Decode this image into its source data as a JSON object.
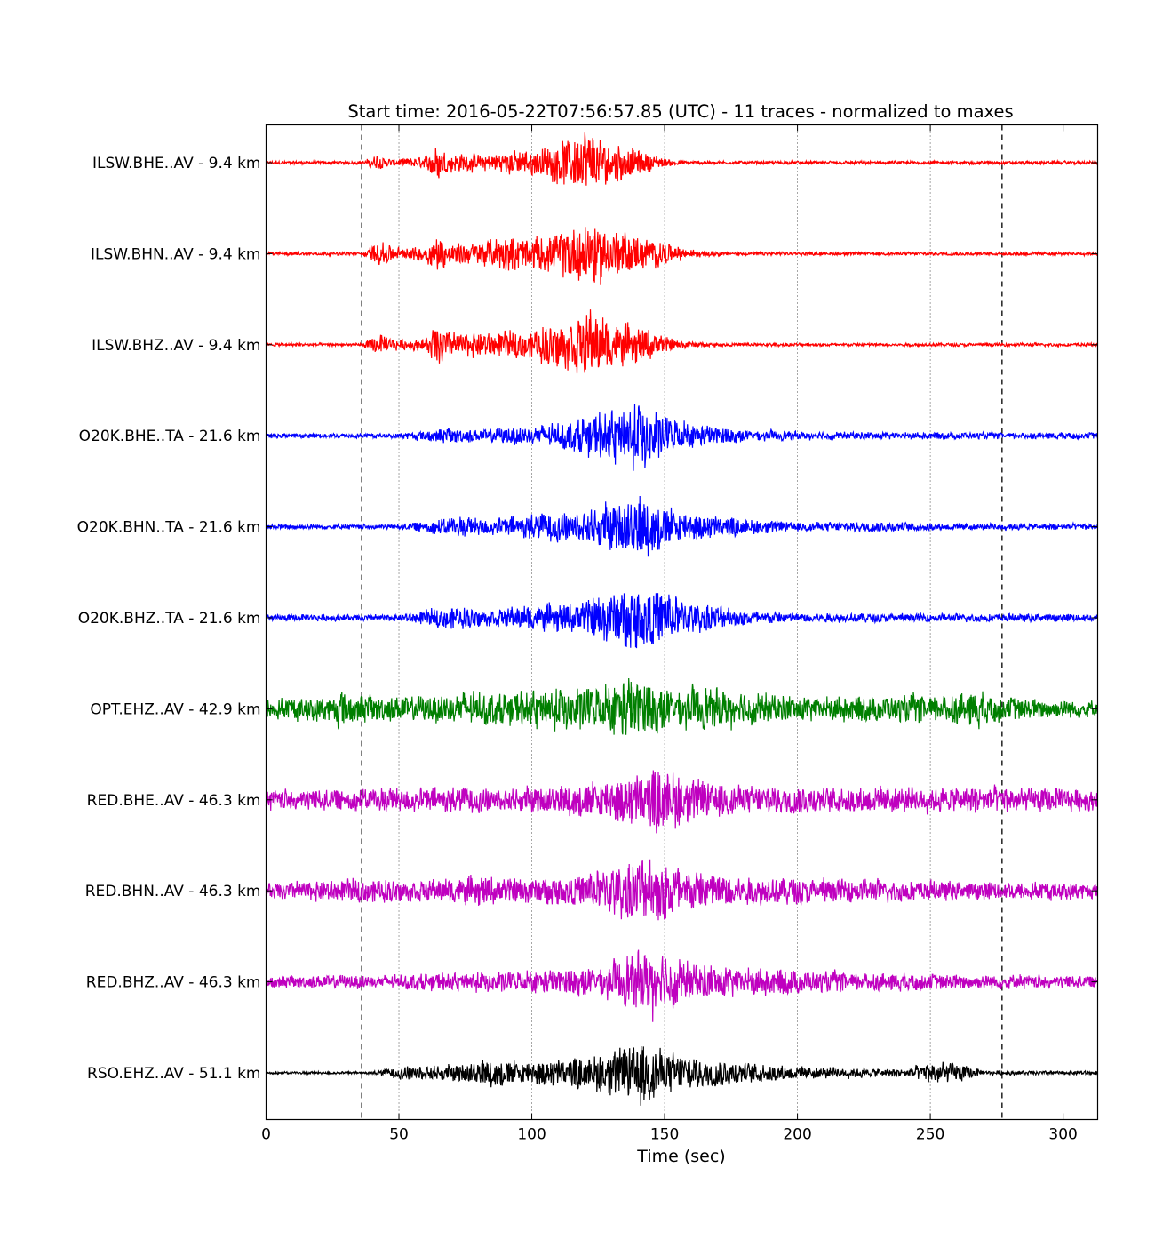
{
  "chart_data": {
    "type": "line",
    "title": "Start time: 2016-05-22T07:56:57.85 (UTC) - 11 traces - normalized to maxes",
    "xlabel": "Time (sec)",
    "ylabel": "",
    "xlim": [
      0,
      313
    ],
    "xticks": [
      0,
      50,
      100,
      150,
      200,
      250,
      300
    ],
    "grid": "vertical dotted",
    "markers": [
      36,
      277
    ],
    "traces": [
      {
        "label": "ILSW.BHE..AV - 9.4 km",
        "color": "#ff0000",
        "noise": 0.04,
        "env": [
          [
            36,
            0.02
          ],
          [
            42,
            0.2
          ],
          [
            48,
            0.08
          ],
          [
            60,
            0.15
          ],
          [
            64,
            0.45
          ],
          [
            68,
            0.25
          ],
          [
            80,
            0.2
          ],
          [
            95,
            0.3
          ],
          [
            105,
            0.35
          ],
          [
            115,
            0.6
          ],
          [
            121,
            0.85
          ],
          [
            126,
            0.6
          ],
          [
            135,
            0.4
          ],
          [
            150,
            0.1
          ],
          [
            160,
            0.03
          ]
        ]
      },
      {
        "label": "ILSW.BHN..AV - 9.4 km",
        "color": "#ff0000",
        "noise": 0.04,
        "env": [
          [
            36,
            0.02
          ],
          [
            42,
            0.3
          ],
          [
            50,
            0.15
          ],
          [
            60,
            0.2
          ],
          [
            64,
            0.45
          ],
          [
            70,
            0.25
          ],
          [
            80,
            0.3
          ],
          [
            92,
            0.45
          ],
          [
            100,
            0.35
          ],
          [
            110,
            0.5
          ],
          [
            121,
            0.85
          ],
          [
            130,
            0.6
          ],
          [
            145,
            0.35
          ],
          [
            160,
            0.1
          ],
          [
            175,
            0.03
          ]
        ]
      },
      {
        "label": "ILSW.BHZ..AV - 9.4 km",
        "color": "#ff0000",
        "noise": 0.04,
        "env": [
          [
            36,
            0.02
          ],
          [
            42,
            0.25
          ],
          [
            50,
            0.12
          ],
          [
            60,
            0.15
          ],
          [
            64,
            0.55
          ],
          [
            70,
            0.3
          ],
          [
            85,
            0.3
          ],
          [
            100,
            0.35
          ],
          [
            105,
            0.5
          ],
          [
            118,
            0.7
          ],
          [
            122,
            0.8
          ],
          [
            130,
            0.55
          ],
          [
            145,
            0.35
          ],
          [
            155,
            0.1
          ],
          [
            170,
            0.03
          ]
        ]
      },
      {
        "label": "O20K.BHE..TA - 21.6 km",
        "color": "#0000ff",
        "noise": 0.06,
        "env": [
          [
            50,
            0.07
          ],
          [
            70,
            0.2
          ],
          [
            80,
            0.15
          ],
          [
            100,
            0.25
          ],
          [
            115,
            0.35
          ],
          [
            128,
            0.6
          ],
          [
            142,
            0.8
          ],
          [
            148,
            0.55
          ],
          [
            160,
            0.3
          ],
          [
            180,
            0.15
          ],
          [
            200,
            0.1
          ],
          [
            250,
            0.08
          ]
        ]
      },
      {
        "label": "O20K.BHN..TA - 21.6 km",
        "color": "#0000ff",
        "noise": 0.06,
        "env": [
          [
            50,
            0.07
          ],
          [
            72,
            0.25
          ],
          [
            85,
            0.2
          ],
          [
            100,
            0.3
          ],
          [
            118,
            0.4
          ],
          [
            130,
            0.6
          ],
          [
            141,
            0.8
          ],
          [
            148,
            0.6
          ],
          [
            160,
            0.35
          ],
          [
            180,
            0.2
          ],
          [
            200,
            0.12
          ],
          [
            240,
            0.12
          ],
          [
            255,
            0.08
          ]
        ]
      },
      {
        "label": "O20K.BHZ..TA - 21.6 km",
        "color": "#0000ff",
        "noise": 0.08,
        "env": [
          [
            50,
            0.08
          ],
          [
            70,
            0.3
          ],
          [
            85,
            0.2
          ],
          [
            100,
            0.3
          ],
          [
            115,
            0.35
          ],
          [
            128,
            0.6
          ],
          [
            140,
            0.8
          ],
          [
            148,
            0.7
          ],
          [
            160,
            0.4
          ],
          [
            180,
            0.2
          ],
          [
            200,
            0.12
          ],
          [
            250,
            0.1
          ]
        ]
      },
      {
        "label": "OPT.EHZ..AV - 42.9 km",
        "color": "#007f00",
        "noise": 0.2,
        "env": [
          [
            0,
            0.25
          ],
          [
            25,
            0.3
          ],
          [
            28,
            0.6
          ],
          [
            32,
            0.35
          ],
          [
            60,
            0.3
          ],
          [
            75,
            0.45
          ],
          [
            90,
            0.35
          ],
          [
            100,
            0.45
          ],
          [
            115,
            0.5
          ],
          [
            130,
            0.6
          ],
          [
            135,
            0.8
          ],
          [
            150,
            0.55
          ],
          [
            175,
            0.45
          ],
          [
            200,
            0.3
          ],
          [
            230,
            0.3
          ],
          [
            255,
            0.35
          ],
          [
            268,
            0.45
          ],
          [
            275,
            0.3
          ],
          [
            313,
            0.2
          ]
        ]
      },
      {
        "label": "RED.BHE..AV - 46.3 km",
        "color": "#bf00bf",
        "noise": 0.15,
        "env": [
          [
            0,
            0.25
          ],
          [
            60,
            0.3
          ],
          [
            90,
            0.3
          ],
          [
            110,
            0.35
          ],
          [
            135,
            0.6
          ],
          [
            150,
            0.85
          ],
          [
            160,
            0.55
          ],
          [
            180,
            0.35
          ],
          [
            250,
            0.3
          ],
          [
            270,
            0.35
          ],
          [
            313,
            0.25
          ]
        ]
      },
      {
        "label": "RED.BHN..AV - 46.3 km",
        "color": "#bf00bf",
        "noise": 0.15,
        "env": [
          [
            0,
            0.2
          ],
          [
            40,
            0.3
          ],
          [
            60,
            0.25
          ],
          [
            80,
            0.35
          ],
          [
            100,
            0.3
          ],
          [
            120,
            0.4
          ],
          [
            130,
            0.65
          ],
          [
            148,
            0.85
          ],
          [
            160,
            0.55
          ],
          [
            180,
            0.35
          ],
          [
            210,
            0.3
          ],
          [
            250,
            0.25
          ],
          [
            313,
            0.2
          ]
        ]
      },
      {
        "label": "RED.BHZ..AV - 46.3 km",
        "color": "#bf00bf",
        "noise": 0.12,
        "env": [
          [
            0,
            0.15
          ],
          [
            50,
            0.18
          ],
          [
            90,
            0.25
          ],
          [
            110,
            0.3
          ],
          [
            130,
            0.45
          ],
          [
            146,
            0.85
          ],
          [
            160,
            0.45
          ],
          [
            180,
            0.35
          ],
          [
            210,
            0.25
          ],
          [
            250,
            0.2
          ],
          [
            313,
            0.15
          ]
        ]
      },
      {
        "label": "RSO.EHZ..AV - 51.1 km",
        "color": "#000000",
        "noise": 0.03,
        "env": [
          [
            40,
            0.03
          ],
          [
            55,
            0.2
          ],
          [
            70,
            0.2
          ],
          [
            84,
            0.35
          ],
          [
            100,
            0.3
          ],
          [
            120,
            0.4
          ],
          [
            135,
            0.65
          ],
          [
            140,
            0.9
          ],
          [
            150,
            0.55
          ],
          [
            165,
            0.35
          ],
          [
            185,
            0.25
          ],
          [
            200,
            0.15
          ],
          [
            240,
            0.1
          ],
          [
            252,
            0.3
          ],
          [
            260,
            0.25
          ],
          [
            270,
            0.05
          ]
        ]
      }
    ]
  }
}
